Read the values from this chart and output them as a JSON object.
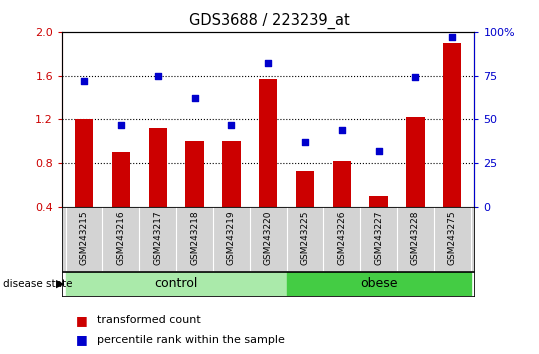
{
  "title": "GDS3688 / 223239_at",
  "samples": [
    "GSM243215",
    "GSM243216",
    "GSM243217",
    "GSM243218",
    "GSM243219",
    "GSM243220",
    "GSM243225",
    "GSM243226",
    "GSM243227",
    "GSM243228",
    "GSM243275"
  ],
  "transformed_count": [
    1.2,
    0.9,
    1.12,
    1.0,
    1.0,
    1.57,
    0.73,
    0.82,
    0.5,
    1.22,
    1.9
  ],
  "percentile_rank": [
    72,
    47,
    75,
    62,
    47,
    82,
    37,
    44,
    32,
    74,
    97
  ],
  "control_count": 6,
  "ylim_left": [
    0.4,
    2.0
  ],
  "ylim_right": [
    0,
    100
  ],
  "yticks_left": [
    0.4,
    0.8,
    1.2,
    1.6,
    2.0
  ],
  "yticks_right": [
    0,
    25,
    50,
    75,
    100
  ],
  "bar_color": "#CC0000",
  "dot_color": "#0000CC",
  "axis_color_left": "#CC0000",
  "axis_color_right": "#0000CC",
  "legend_bar_label": "transformed count",
  "legend_dot_label": "percentile rank within the sample",
  "bg_color_samples": "#D3D3D3",
  "control_color": "#AAEAAA",
  "obese_color": "#44CC44",
  "grid_dotted": [
    0.8,
    1.2,
    1.6
  ]
}
